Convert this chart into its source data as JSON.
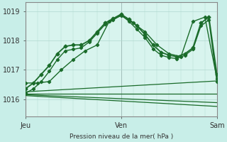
{
  "background_color": "#c8eee8",
  "plot_bg_color": "#d8f4ee",
  "grid_color": "#b0d8d0",
  "line_color": "#1a6b2a",
  "ylabel_text": "Pression niveau de la mer( hPa )",
  "xtick_labels": [
    "Jeu",
    "Ven",
    "Sam"
  ],
  "ytick_labels": [
    1016,
    1017,
    1018,
    1019
  ],
  "ylim": [
    1015.4,
    1019.3
  ],
  "xlim": [
    0,
    48
  ],
  "xtick_positions": [
    0,
    24,
    48
  ],
  "series": [
    {
      "x": [
        0,
        2,
        4,
        6,
        8,
        10,
        12,
        14,
        16,
        18,
        20,
        22,
        24,
        26,
        28,
        30,
        32,
        34,
        36,
        38,
        40,
        42,
        44,
        46,
        48
      ],
      "y": [
        1016.35,
        1016.55,
        1016.85,
        1017.15,
        1017.55,
        1017.8,
        1017.85,
        1017.85,
        1018.0,
        1018.3,
        1018.6,
        1018.75,
        1018.9,
        1018.72,
        1018.5,
        1018.2,
        1017.85,
        1017.6,
        1017.5,
        1017.45,
        1017.55,
        1017.75,
        1018.6,
        1018.8,
        1016.85
      ],
      "color": "#1a6b2a",
      "lw": 1.3,
      "marker": "D",
      "ms": 2.5,
      "zorder": 5
    },
    {
      "x": [
        0,
        2,
        4,
        6,
        8,
        10,
        12,
        14,
        16,
        18,
        20,
        22,
        24,
        26,
        28,
        30,
        32,
        34,
        36,
        38,
        40,
        42,
        44,
        46,
        48
      ],
      "y": [
        1016.2,
        1016.35,
        1016.6,
        1016.95,
        1017.35,
        1017.65,
        1017.7,
        1017.75,
        1017.95,
        1018.25,
        1018.55,
        1018.7,
        1018.88,
        1018.65,
        1018.38,
        1018.1,
        1017.72,
        1017.5,
        1017.42,
        1017.38,
        1017.5,
        1017.7,
        1018.5,
        1018.7,
        1016.6
      ],
      "color": "#1a6b2a",
      "lw": 1.0,
      "marker": "D",
      "ms": 2.2,
      "zorder": 4
    },
    {
      "x": [
        0,
        3,
        6,
        9,
        12,
        15,
        18,
        21,
        24,
        27,
        30,
        33,
        36,
        39,
        42,
        45,
        48
      ],
      "y": [
        1016.55,
        1016.55,
        1016.6,
        1017.0,
        1017.35,
        1017.65,
        1017.85,
        1018.65,
        1018.85,
        1018.6,
        1018.3,
        1017.85,
        1017.55,
        1017.45,
        1018.65,
        1018.8,
        1016.7
      ],
      "color": "#1a6b2a",
      "lw": 1.0,
      "marker": "D",
      "ms": 2.2,
      "zorder": 4
    },
    {
      "x": [
        0,
        48
      ],
      "y": [
        1016.25,
        1016.62
      ],
      "color": "#1a6b2a",
      "lw": 0.9,
      "marker": null,
      "ms": 0,
      "zorder": 3
    },
    {
      "x": [
        0,
        48
      ],
      "y": [
        1016.18,
        1016.18
      ],
      "color": "#1a6b2a",
      "lw": 0.9,
      "marker": null,
      "ms": 0,
      "zorder": 3
    },
    {
      "x": [
        0,
        48
      ],
      "y": [
        1016.15,
        1015.88
      ],
      "color": "#1a6b2a",
      "lw": 0.9,
      "marker": null,
      "ms": 0,
      "zorder": 3
    },
    {
      "x": [
        0,
        48
      ],
      "y": [
        1016.12,
        1015.75
      ],
      "color": "#1a6b2a",
      "lw": 0.9,
      "marker": null,
      "ms": 0,
      "zorder": 3
    }
  ]
}
